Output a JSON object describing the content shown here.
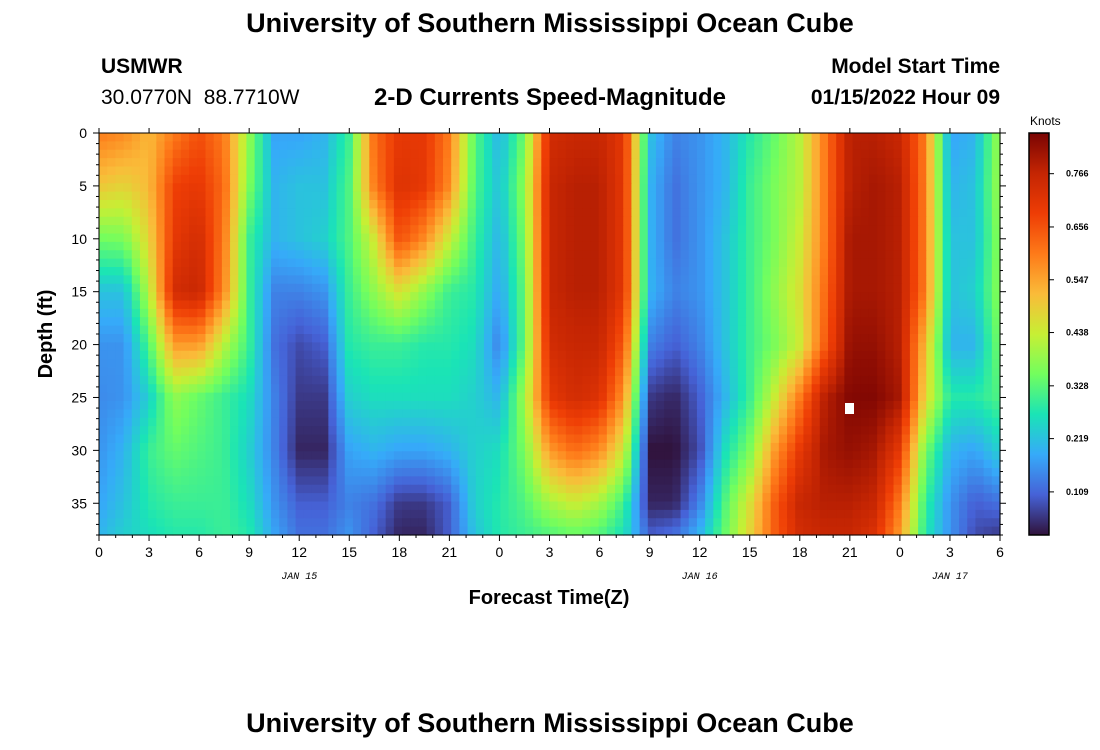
{
  "title": "University of Southern Mississippi Ocean Cube",
  "station": {
    "name": "USMWR",
    "coords": "30.0770N  88.7710W"
  },
  "subtitle": "2-D Currents Speed-Magnitude",
  "model": {
    "label": "Model Start Time",
    "time": "01/15/2022 Hour 09"
  },
  "footer_title": "University of Southern Mississippi Ocean Cube",
  "chart_data": {
    "type": "heatmap",
    "title": "2-D Currents Speed-Magnitude",
    "xlabel": "Forecast Time(Z)",
    "ylabel": "Depth (ft)",
    "x_tick_labels": [
      "0",
      "3",
      "6",
      "9",
      "12",
      "15",
      "18",
      "21",
      "0",
      "3",
      "6",
      "9",
      "12",
      "15",
      "18",
      "21",
      "0",
      "3",
      "6"
    ],
    "x_range_hours": [
      0,
      54
    ],
    "date_labels": [
      {
        "label": "JAN 15",
        "hour": 12
      },
      {
        "label": "JAN 16",
        "hour": 36
      },
      {
        "label": "JAN 17",
        "hour": 51
      }
    ],
    "y_tick_labels": [
      "0",
      "5",
      "10",
      "15",
      "20",
      "25",
      "30",
      "35"
    ],
    "y_range_ft": [
      0,
      38
    ],
    "colorbar": {
      "label": "Knots",
      "range": [
        0.02,
        0.85
      ],
      "tick_values": [
        0.109,
        0.219,
        0.328,
        0.438,
        0.547,
        0.656,
        0.766
      ],
      "tick_labels": [
        "0.109",
        "0.219",
        "0.328",
        "0.438",
        "0.547",
        "0.656",
        "0.766"
      ],
      "colors": [
        "#30123b",
        "#4662d7",
        "#36aaf9",
        "#1ae4b6",
        "#72fe5e",
        "#c7ef34",
        "#fabb39",
        "#fe7a19",
        "#ee3d05",
        "#c42503",
        "#7a0403"
      ]
    },
    "speed_grid": {
      "time_hours": [
        0,
        1.5,
        3,
        4.5,
        6,
        7.5,
        9,
        10.5,
        12,
        13.5,
        15,
        16.5,
        18,
        19.5,
        21,
        22.5,
        24,
        25.5,
        27,
        28.5,
        30,
        31.5,
        33,
        34.5,
        36,
        37.5,
        39,
        40.5,
        42,
        43.5,
        45,
        46.5,
        48,
        49.5,
        51,
        52.5,
        54
      ],
      "depth_ft": [
        0,
        5,
        10,
        15,
        20,
        25,
        30,
        35,
        38
      ],
      "values_by_depth": [
        [
          0.6,
          0.58,
          0.52,
          0.6,
          0.66,
          0.6,
          0.38,
          0.18,
          0.18,
          0.2,
          0.3,
          0.62,
          0.7,
          0.7,
          0.6,
          0.33,
          0.2,
          0.35,
          0.74,
          0.76,
          0.76,
          0.7,
          0.22,
          0.14,
          0.16,
          0.2,
          0.28,
          0.34,
          0.42,
          0.6,
          0.78,
          0.78,
          0.76,
          0.6,
          0.18,
          0.2,
          0.4
        ],
        [
          0.5,
          0.48,
          0.52,
          0.68,
          0.7,
          0.62,
          0.36,
          0.2,
          0.22,
          0.22,
          0.32,
          0.6,
          0.72,
          0.7,
          0.58,
          0.32,
          0.22,
          0.38,
          0.76,
          0.78,
          0.78,
          0.7,
          0.2,
          0.12,
          0.16,
          0.2,
          0.3,
          0.36,
          0.42,
          0.6,
          0.78,
          0.8,
          0.78,
          0.6,
          0.2,
          0.22,
          0.4
        ],
        [
          0.35,
          0.36,
          0.48,
          0.7,
          0.74,
          0.6,
          0.3,
          0.2,
          0.22,
          0.24,
          0.32,
          0.45,
          0.66,
          0.58,
          0.44,
          0.3,
          0.2,
          0.36,
          0.76,
          0.78,
          0.78,
          0.7,
          0.2,
          0.12,
          0.16,
          0.22,
          0.3,
          0.36,
          0.44,
          0.6,
          0.8,
          0.8,
          0.78,
          0.6,
          0.22,
          0.22,
          0.38
        ],
        [
          0.22,
          0.22,
          0.42,
          0.74,
          0.76,
          0.58,
          0.3,
          0.14,
          0.14,
          0.16,
          0.3,
          0.38,
          0.46,
          0.38,
          0.3,
          0.28,
          0.18,
          0.34,
          0.76,
          0.78,
          0.78,
          0.7,
          0.2,
          0.14,
          0.16,
          0.22,
          0.3,
          0.38,
          0.46,
          0.62,
          0.8,
          0.8,
          0.78,
          0.6,
          0.22,
          0.24,
          0.38
        ],
        [
          0.16,
          0.16,
          0.32,
          0.56,
          0.56,
          0.42,
          0.3,
          0.12,
          0.08,
          0.1,
          0.28,
          0.3,
          0.3,
          0.28,
          0.28,
          0.26,
          0.14,
          0.34,
          0.74,
          0.76,
          0.76,
          0.64,
          0.14,
          0.1,
          0.14,
          0.22,
          0.3,
          0.36,
          0.44,
          0.64,
          0.82,
          0.82,
          0.78,
          0.52,
          0.2,
          0.2,
          0.36
        ],
        [
          0.15,
          0.16,
          0.24,
          0.38,
          0.34,
          0.3,
          0.26,
          0.14,
          0.06,
          0.06,
          0.24,
          0.26,
          0.26,
          0.26,
          0.26,
          0.24,
          0.2,
          0.4,
          0.7,
          0.74,
          0.72,
          0.56,
          0.06,
          0.04,
          0.1,
          0.2,
          0.3,
          0.44,
          0.6,
          0.78,
          0.84,
          0.84,
          0.8,
          0.48,
          0.28,
          0.28,
          0.32
        ],
        [
          0.16,
          0.2,
          0.3,
          0.34,
          0.32,
          0.3,
          0.24,
          0.14,
          0.04,
          0.04,
          0.18,
          0.2,
          0.18,
          0.18,
          0.2,
          0.24,
          0.26,
          0.36,
          0.56,
          0.62,
          0.58,
          0.44,
          0.02,
          0.02,
          0.08,
          0.26,
          0.36,
          0.56,
          0.7,
          0.8,
          0.82,
          0.8,
          0.7,
          0.36,
          0.2,
          0.18,
          0.24
        ],
        [
          0.18,
          0.22,
          0.28,
          0.3,
          0.3,
          0.3,
          0.26,
          0.16,
          0.1,
          0.1,
          0.14,
          0.12,
          0.06,
          0.06,
          0.1,
          0.24,
          0.28,
          0.32,
          0.4,
          0.44,
          0.4,
          0.3,
          0.04,
          0.04,
          0.14,
          0.32,
          0.46,
          0.64,
          0.76,
          0.78,
          0.78,
          0.76,
          0.6,
          0.3,
          0.16,
          0.1,
          0.12
        ],
        [
          0.2,
          0.24,
          0.26,
          0.28,
          0.28,
          0.3,
          0.28,
          0.18,
          0.12,
          0.12,
          0.16,
          0.1,
          0.04,
          0.04,
          0.1,
          0.22,
          0.28,
          0.3,
          0.32,
          0.34,
          0.32,
          0.26,
          0.1,
          0.12,
          0.2,
          0.34,
          0.48,
          0.64,
          0.74,
          0.76,
          0.76,
          0.72,
          0.56,
          0.28,
          0.16,
          0.08,
          0.06
        ]
      ]
    }
  }
}
